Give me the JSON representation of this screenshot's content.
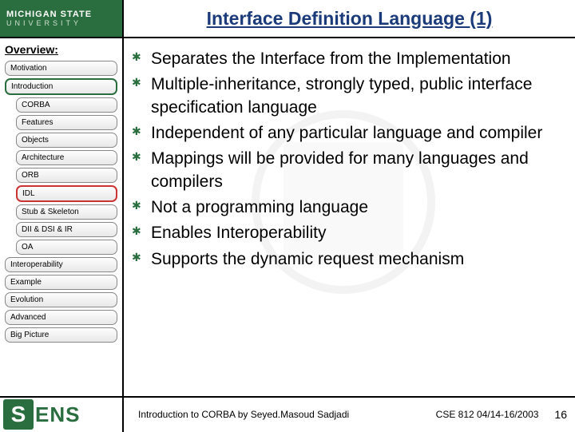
{
  "header": {
    "logo_line1": "MICHIGAN STATE",
    "logo_line2": "UNIVERSITY",
    "title": "Interface Definition Language (1)"
  },
  "sidebar": {
    "overview_label": "Overview:",
    "items": [
      {
        "label": "Motivation",
        "indent": false,
        "hl": "none"
      },
      {
        "label": "Introduction",
        "indent": false,
        "hl": "green"
      },
      {
        "label": "CORBA",
        "indent": true,
        "hl": "none"
      },
      {
        "label": "Features",
        "indent": true,
        "hl": "none"
      },
      {
        "label": "Objects",
        "indent": true,
        "hl": "none"
      },
      {
        "label": "Architecture",
        "indent": true,
        "hl": "none"
      },
      {
        "label": "ORB",
        "indent": true,
        "hl": "none"
      },
      {
        "label": "IDL",
        "indent": true,
        "hl": "red"
      },
      {
        "label": "Stub & Skeleton",
        "indent": true,
        "hl": "none"
      },
      {
        "label": "DII & DSI & IR",
        "indent": true,
        "hl": "none"
      },
      {
        "label": "OA",
        "indent": true,
        "hl": "none"
      },
      {
        "label": "Interoperability",
        "indent": false,
        "hl": "none"
      },
      {
        "label": "Example",
        "indent": false,
        "hl": "none"
      },
      {
        "label": "Evolution",
        "indent": false,
        "hl": "none"
      },
      {
        "label": "Advanced",
        "indent": false,
        "hl": "none"
      },
      {
        "label": "Big Picture",
        "indent": false,
        "hl": "none"
      }
    ]
  },
  "content": {
    "bullets": [
      "Separates the Interface from the Implementation",
      "Multiple-inheritance, strongly typed, public interface specification language",
      "Independent of any particular language and compiler",
      "Mappings will be provided for many languages and compilers",
      "Not a programming language",
      "Enables Interoperability",
      "Supports the dynamic request mechanism"
    ]
  },
  "footer": {
    "sens_s": "S",
    "sens_text": "ENS",
    "center": "Introduction to CORBA by Seyed.Masoud Sadjadi",
    "right": "CSE 812   04/14-16/2003",
    "page": "16"
  },
  "colors": {
    "brand_green": "#2a6e3f",
    "title_blue": "#1a3a7a",
    "hl_red": "#cc3333"
  }
}
